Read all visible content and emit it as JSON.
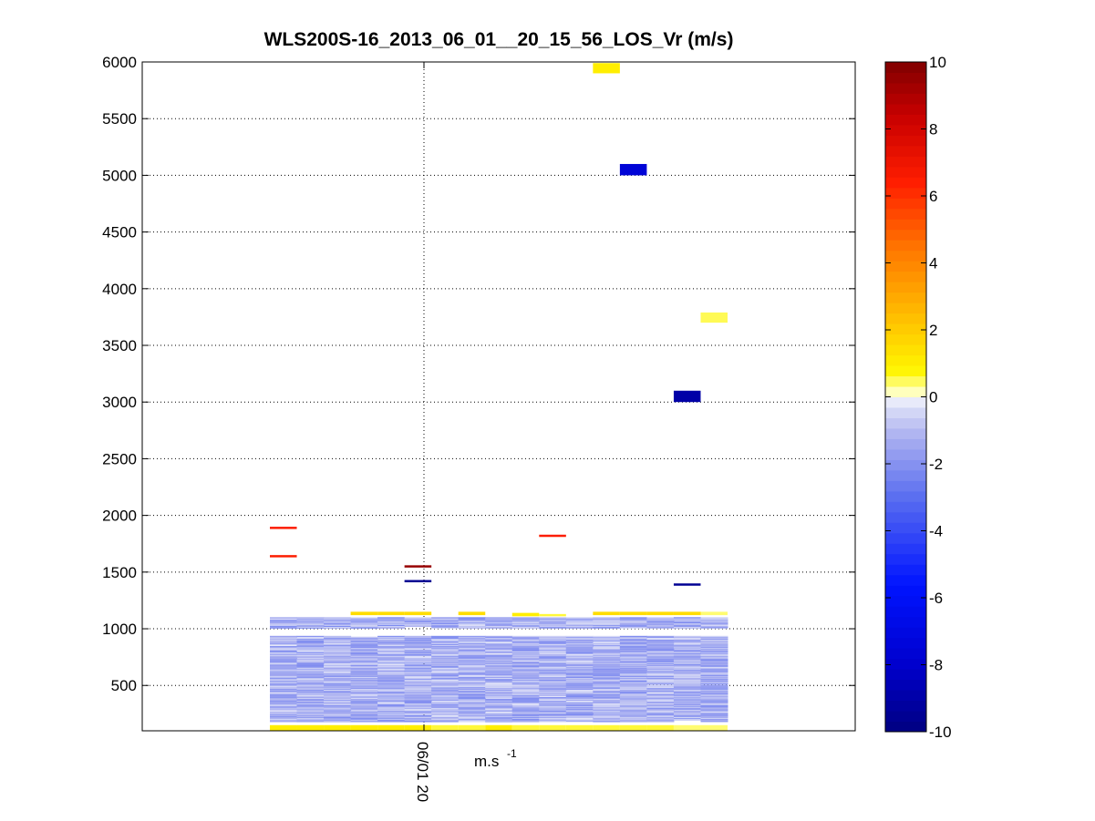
{
  "chart_data": {
    "type": "heatmap",
    "title": "WLS200S-16_2013_06_01__20_15_56_LOS_Vr (m/s)",
    "xlabel_base": "m.s",
    "xlabel_exponent": "-1",
    "x_tick_label": "06/01 20",
    "ylim": [
      100,
      6000
    ],
    "y_ticks": [
      500,
      1000,
      1500,
      2000,
      2500,
      3000,
      3500,
      4000,
      4500,
      5000,
      5500,
      6000
    ],
    "grid": "dotted",
    "colorbar": {
      "range": [
        -10,
        10
      ],
      "ticks": [
        -10,
        -8,
        -6,
        -4,
        -2,
        0,
        2,
        4,
        6,
        8,
        10
      ],
      "steps": 64
    },
    "x_columns": 17,
    "bulk_layer": {
      "column_range": [
        0,
        17
      ],
      "altitude_range": [
        180,
        1100
      ],
      "typical_value_range": [
        -2.2,
        -0.3
      ]
    },
    "cells": [
      {
        "column": 0,
        "alt_lo": 100,
        "alt_hi": 150,
        "value": 1.0
      },
      {
        "column": 1,
        "alt_lo": 100,
        "alt_hi": 150,
        "value": 1.0
      },
      {
        "column": 2,
        "alt_lo": 100,
        "alt_hi": 150,
        "value": 1.0
      },
      {
        "column": 3,
        "alt_lo": 100,
        "alt_hi": 150,
        "value": 1.0
      },
      {
        "column": 4,
        "alt_lo": 100,
        "alt_hi": 150,
        "value": 1.0
      },
      {
        "column": 5,
        "alt_lo": 100,
        "alt_hi": 150,
        "value": 1.0
      },
      {
        "column": 6,
        "alt_lo": 100,
        "alt_hi": 150,
        "value": 0.6
      },
      {
        "column": 7,
        "alt_lo": 100,
        "alt_hi": 150,
        "value": 0.6
      },
      {
        "column": 8,
        "alt_lo": 100,
        "alt_hi": 150,
        "value": 1.0
      },
      {
        "column": 9,
        "alt_lo": 100,
        "alt_hi": 150,
        "value": 0.6
      },
      {
        "column": 10,
        "alt_lo": 100,
        "alt_hi": 150,
        "value": 0.6
      },
      {
        "column": 11,
        "alt_lo": 100,
        "alt_hi": 150,
        "value": 0.6
      },
      {
        "column": 12,
        "alt_lo": 100,
        "alt_hi": 150,
        "value": 0.6
      },
      {
        "column": 13,
        "alt_lo": 100,
        "alt_hi": 150,
        "value": 0.6
      },
      {
        "column": 14,
        "alt_lo": 100,
        "alt_hi": 150,
        "value": 0.6
      },
      {
        "column": 15,
        "alt_lo": 100,
        "alt_hi": 150,
        "value": 0.4
      },
      {
        "column": 16,
        "alt_lo": 100,
        "alt_hi": 150,
        "value": 0.4
      },
      {
        "column": 3,
        "alt_lo": 1120,
        "alt_hi": 1150,
        "value": 1.5
      },
      {
        "column": 4,
        "alt_lo": 1120,
        "alt_hi": 1150,
        "value": 1.5
      },
      {
        "column": 5,
        "alt_lo": 1120,
        "alt_hi": 1150,
        "value": 1.5
      },
      {
        "column": 7,
        "alt_lo": 1120,
        "alt_hi": 1150,
        "value": 1.5
      },
      {
        "column": 9,
        "alt_lo": 1110,
        "alt_hi": 1140,
        "value": 1.0
      },
      {
        "column": 10,
        "alt_lo": 1110,
        "alt_hi": 1130,
        "value": 0.6
      },
      {
        "column": 12,
        "alt_lo": 1120,
        "alt_hi": 1150,
        "value": 1.5
      },
      {
        "column": 13,
        "alt_lo": 1120,
        "alt_hi": 1150,
        "value": 1.5
      },
      {
        "column": 14,
        "alt_lo": 1120,
        "alt_hi": 1150,
        "value": 1.5
      },
      {
        "column": 15,
        "alt_lo": 1120,
        "alt_hi": 1150,
        "value": 1.5
      },
      {
        "column": 16,
        "alt_lo": 1120,
        "alt_hi": 1150,
        "value": 0.4
      },
      {
        "column": 12,
        "alt_lo": 5900,
        "alt_hi": 5990,
        "value": 1.0
      },
      {
        "column": 13,
        "alt_lo": 5000,
        "alt_hi": 5100,
        "value": -7.5
      },
      {
        "column": 16,
        "alt_lo": 3700,
        "alt_hi": 3790,
        "value": 0.5
      },
      {
        "column": 15,
        "alt_lo": 3000,
        "alt_hi": 3100,
        "value": -9.0
      },
      {
        "column": 0,
        "alt_lo": 1880,
        "alt_hi": 1900,
        "value": 6.5
      },
      {
        "column": 0,
        "alt_lo": 1630,
        "alt_hi": 1650,
        "value": 6.5
      },
      {
        "column": 5,
        "alt_lo": 1540,
        "alt_hi": 1560,
        "value": 9.5
      },
      {
        "column": 5,
        "alt_lo": 1410,
        "alt_hi": 1430,
        "value": -9.5
      },
      {
        "column": 10,
        "alt_lo": 1810,
        "alt_hi": 1830,
        "value": 6.5
      },
      {
        "column": 15,
        "alt_lo": 1380,
        "alt_hi": 1400,
        "value": -9.5
      }
    ]
  }
}
